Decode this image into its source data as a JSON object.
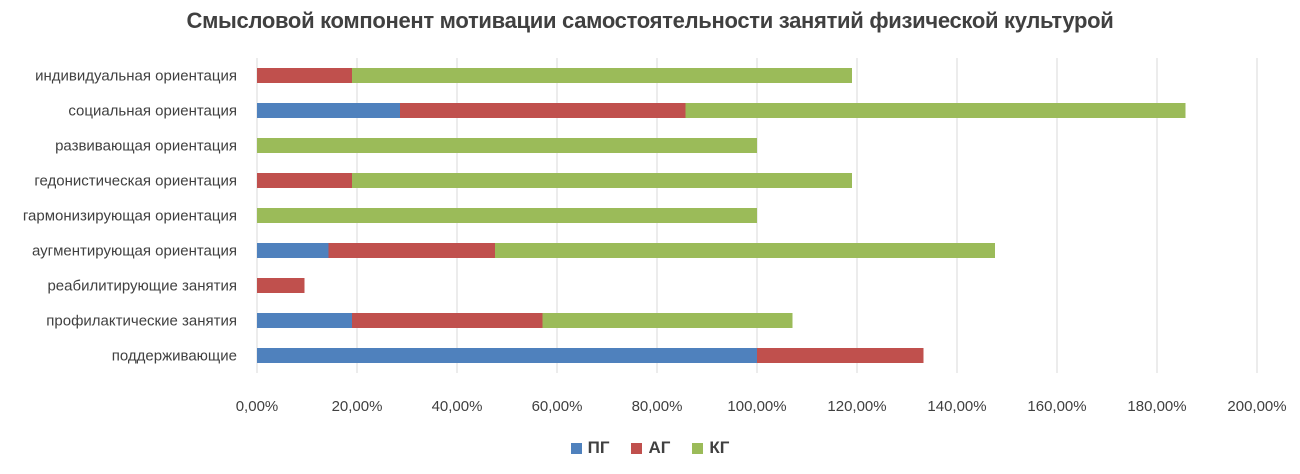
{
  "chart_data": {
    "type": "bar",
    "orientation": "horizontal",
    "stacked": true,
    "title": "Смысловой компонент мотивации самостоятельности занятий физической культурой",
    "categories": [
      "индивидуальная ориентация",
      "социальная ориентация",
      "развивающая ориентация",
      "гедонистическая ориентация",
      "гармонизирующая ориентация",
      "аугментирующая ориентация",
      "реабилитирующие занятия",
      "профилактические занятия",
      "поддерживающие"
    ],
    "series": [
      {
        "name": "ПГ",
        "color": "#4f81bd",
        "values": [
          0,
          28.6,
          0,
          0,
          0,
          14.3,
          0,
          19.0,
          100.0
        ]
      },
      {
        "name": "АГ",
        "color": "#c0504d",
        "values": [
          19.0,
          57.1,
          0,
          19.0,
          0,
          33.3,
          9.5,
          38.1,
          33.3
        ]
      },
      {
        "name": "КГ",
        "color": "#9bbb59",
        "values": [
          100.0,
          100.0,
          100.0,
          100.0,
          100.0,
          100.0,
          0,
          50.0,
          0
        ]
      }
    ],
    "xlim": [
      0,
      200
    ],
    "xticks": [
      "0,00%",
      "20,00%",
      "40,00%",
      "60,00%",
      "80,00%",
      "100,00%",
      "120,00%",
      "140,00%",
      "160,00%",
      "180,00%",
      "200,00%"
    ],
    "grid": "vertical",
    "legend_position": "bottom"
  }
}
